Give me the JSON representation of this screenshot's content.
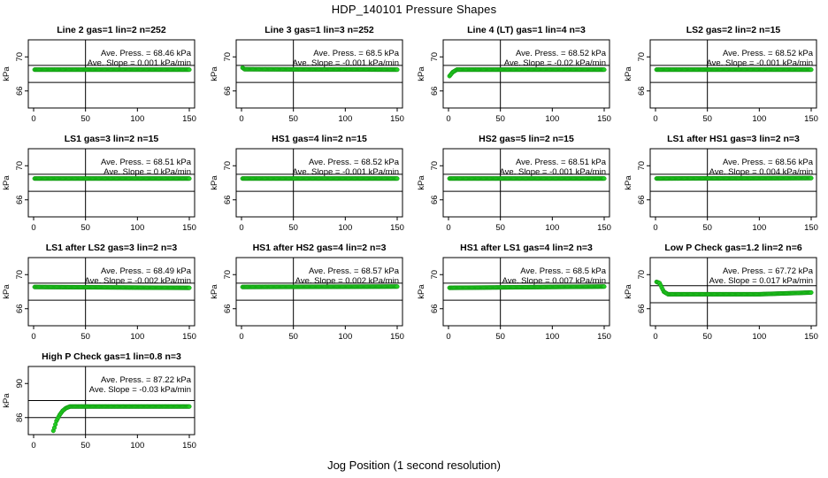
{
  "figure": {
    "title": "HDP_140101  Pressure Shapes",
    "xlabel": "Jog Position (1 second resolution)"
  },
  "chart_data": [
    {
      "type": "scatter",
      "title": "Line 2 gas=1 lin=2 n=252",
      "ann_press": "Ave. Press. = 68.46  kPa",
      "ann_slope": "Ave. Slope = 0.001  kPa/min",
      "ylabel": "kPa",
      "xlim": [
        0,
        150
      ],
      "ylim": [
        64,
        72
      ],
      "xticks": [
        "0",
        "50",
        "100",
        "150"
      ],
      "yticks": [
        "66",
        "70"
      ],
      "hlines": [
        69,
        67
      ],
      "vline": 50,
      "shape": [
        [
          0,
          68.5
        ],
        [
          150,
          68.5
        ]
      ]
    },
    {
      "type": "scatter",
      "title": "Line 3 gas=1 lin=3 n=252",
      "ann_press": "Ave. Press. = 68.5  kPa",
      "ann_slope": "Ave. Slope = -0.001  kPa/min",
      "ylabel": "kPa",
      "xlim": [
        0,
        150
      ],
      "ylim": [
        64,
        72
      ],
      "xticks": [
        "0",
        "50",
        "100",
        "150"
      ],
      "yticks": [
        "66",
        "70"
      ],
      "hlines": [
        69,
        67
      ],
      "vline": 50,
      "shape": [
        [
          0,
          68.8
        ],
        [
          3,
          68.55
        ],
        [
          150,
          68.5
        ]
      ]
    },
    {
      "type": "scatter",
      "title": "Line 4 (LT) gas=1 lin=4 n=3",
      "ann_press": "Ave. Press. = 68.52  kPa",
      "ann_slope": "Ave. Slope = -0.02  kPa/min",
      "ylabel": "kPa",
      "xlim": [
        0,
        150
      ],
      "ylim": [
        64,
        72
      ],
      "xticks": [
        "0",
        "50",
        "100",
        "150"
      ],
      "yticks": [
        "66",
        "70"
      ],
      "hlines": [
        69,
        67
      ],
      "vline": 50,
      "shape": [
        [
          0,
          67.6
        ],
        [
          4,
          68.2
        ],
        [
          8,
          68.5
        ],
        [
          150,
          68.5
        ]
      ]
    },
    {
      "type": "scatter",
      "title": "LS2 gas=2 lin=2 n=15",
      "ann_press": "Ave. Press. = 68.52  kPa",
      "ann_slope": "Ave. Slope = -0.001  kPa/min",
      "ylabel": "kPa",
      "xlim": [
        0,
        150
      ],
      "ylim": [
        64,
        72
      ],
      "xticks": [
        "0",
        "50",
        "100",
        "150"
      ],
      "yticks": [
        "66",
        "70"
      ],
      "hlines": [
        69,
        67
      ],
      "vline": 50,
      "shape": [
        [
          0,
          68.5
        ],
        [
          150,
          68.5
        ]
      ]
    },
    {
      "type": "scatter",
      "title": "LS1 gas=3 lin=2 n=15",
      "ann_press": "Ave. Press. = 68.51  kPa",
      "ann_slope": "Ave. Slope = 0  kPa/min",
      "ylabel": "kPa",
      "xlim": [
        0,
        150
      ],
      "ylim": [
        64,
        72
      ],
      "xticks": [
        "0",
        "50",
        "100",
        "150"
      ],
      "yticks": [
        "66",
        "70"
      ],
      "hlines": [
        69,
        67
      ],
      "vline": 50,
      "shape": [
        [
          0,
          68.5
        ],
        [
          150,
          68.5
        ]
      ]
    },
    {
      "type": "scatter",
      "title": "HS1 gas=4 lin=2 n=15",
      "ann_press": "Ave. Press. = 68.52  kPa",
      "ann_slope": "Ave. Slope = -0.001  kPa/min",
      "ylabel": "kPa",
      "xlim": [
        0,
        150
      ],
      "ylim": [
        64,
        72
      ],
      "xticks": [
        "0",
        "50",
        "100",
        "150"
      ],
      "yticks": [
        "66",
        "70"
      ],
      "hlines": [
        69,
        67
      ],
      "vline": 50,
      "shape": [
        [
          0,
          68.5
        ],
        [
          150,
          68.5
        ]
      ]
    },
    {
      "type": "scatter",
      "title": "HS2 gas=5 lin=2 n=15",
      "ann_press": "Ave. Press. = 68.51  kPa",
      "ann_slope": "Ave. Slope = -0.001  kPa/min",
      "ylabel": "kPa",
      "xlim": [
        0,
        150
      ],
      "ylim": [
        64,
        72
      ],
      "xticks": [
        "0",
        "50",
        "100",
        "150"
      ],
      "yticks": [
        "66",
        "70"
      ],
      "hlines": [
        69,
        67
      ],
      "vline": 50,
      "shape": [
        [
          0,
          68.5
        ],
        [
          150,
          68.5
        ]
      ]
    },
    {
      "type": "scatter",
      "title": "LS1 after HS1 gas=3 lin=2 n=3",
      "ann_press": "Ave. Press. = 68.56  kPa",
      "ann_slope": "Ave. Slope = 0.004  kPa/min",
      "ylabel": "kPa",
      "xlim": [
        0,
        150
      ],
      "ylim": [
        64,
        72
      ],
      "xticks": [
        "0",
        "50",
        "100",
        "150"
      ],
      "yticks": [
        "66",
        "70"
      ],
      "hlines": [
        69,
        67
      ],
      "vline": 50,
      "shape": [
        [
          0,
          68.5
        ],
        [
          150,
          68.55
        ]
      ]
    },
    {
      "type": "scatter",
      "title": "LS1 after LS2 gas=3 lin=2 n=3",
      "ann_press": "Ave. Press. = 68.49  kPa",
      "ann_slope": "Ave. Slope = -0.002  kPa/min",
      "ylabel": "kPa",
      "xlim": [
        0,
        150
      ],
      "ylim": [
        64,
        72
      ],
      "xticks": [
        "0",
        "50",
        "100",
        "150"
      ],
      "yticks": [
        "66",
        "70"
      ],
      "hlines": [
        69,
        67
      ],
      "vline": 50,
      "shape": [
        [
          0,
          68.55
        ],
        [
          150,
          68.45
        ]
      ]
    },
    {
      "type": "scatter",
      "title": "HS1 after HS2 gas=4 lin=2 n=3",
      "ann_press": "Ave. Press. = 68.57  kPa",
      "ann_slope": "Ave. Slope = 0.002  kPa/min",
      "ylabel": "kPa",
      "xlim": [
        0,
        150
      ],
      "ylim": [
        64,
        72
      ],
      "xticks": [
        "0",
        "50",
        "100",
        "150"
      ],
      "yticks": [
        "66",
        "70"
      ],
      "hlines": [
        69,
        67
      ],
      "vline": 50,
      "shape": [
        [
          0,
          68.55
        ],
        [
          150,
          68.6
        ]
      ]
    },
    {
      "type": "scatter",
      "title": "HS1 after LS1 gas=4 lin=2 n=3",
      "ann_press": "Ave. Press. = 68.5  kPa",
      "ann_slope": "Ave. Slope = 0.007  kPa/min",
      "ylabel": "kPa",
      "xlim": [
        0,
        150
      ],
      "ylim": [
        64,
        72
      ],
      "xticks": [
        "0",
        "50",
        "100",
        "150"
      ],
      "yticks": [
        "66",
        "70"
      ],
      "hlines": [
        69,
        67
      ],
      "vline": 50,
      "shape": [
        [
          0,
          68.45
        ],
        [
          150,
          68.6
        ]
      ]
    },
    {
      "type": "scatter",
      "title": "Low P Check gas=1.2 lin=2 n=6",
      "ann_press": "Ave. Press. = 67.72  kPa",
      "ann_slope": "Ave. Slope = 0.017  kPa/min",
      "ylabel": "kPa",
      "xlim": [
        0,
        150
      ],
      "ylim": [
        64,
        72
      ],
      "xticks": [
        "0",
        "50",
        "100",
        "150"
      ],
      "yticks": [
        "66",
        "70"
      ],
      "hlines": [
        68.7,
        66.7
      ],
      "vline": 50,
      "shape": [
        [
          0,
          69.2
        ],
        [
          4,
          69
        ],
        [
          8,
          68
        ],
        [
          12,
          67.7
        ],
        [
          100,
          67.7
        ],
        [
          150,
          67.9
        ]
      ]
    },
    {
      "type": "scatter",
      "title": "High P Check gas=1 lin=0.8 n=3",
      "ann_press": "Ave. Press. = 87.22  kPa",
      "ann_slope": "Ave. Slope = -0.03  kPa/min",
      "ylabel": "kPa",
      "xlim": [
        0,
        150
      ],
      "ylim": [
        84,
        92
      ],
      "xticks": [
        "0",
        "50",
        "100",
        "150"
      ],
      "yticks": [
        "86",
        "90"
      ],
      "hlines": [
        88,
        86
      ],
      "vline": 50,
      "shape": [
        [
          18,
          84.1
        ],
        [
          20,
          84.8
        ],
        [
          22,
          85.6
        ],
        [
          25,
          86.3
        ],
        [
          28,
          86.8
        ],
        [
          31,
          87.1
        ],
        [
          35,
          87.3
        ],
        [
          150,
          87.3
        ]
      ]
    }
  ]
}
